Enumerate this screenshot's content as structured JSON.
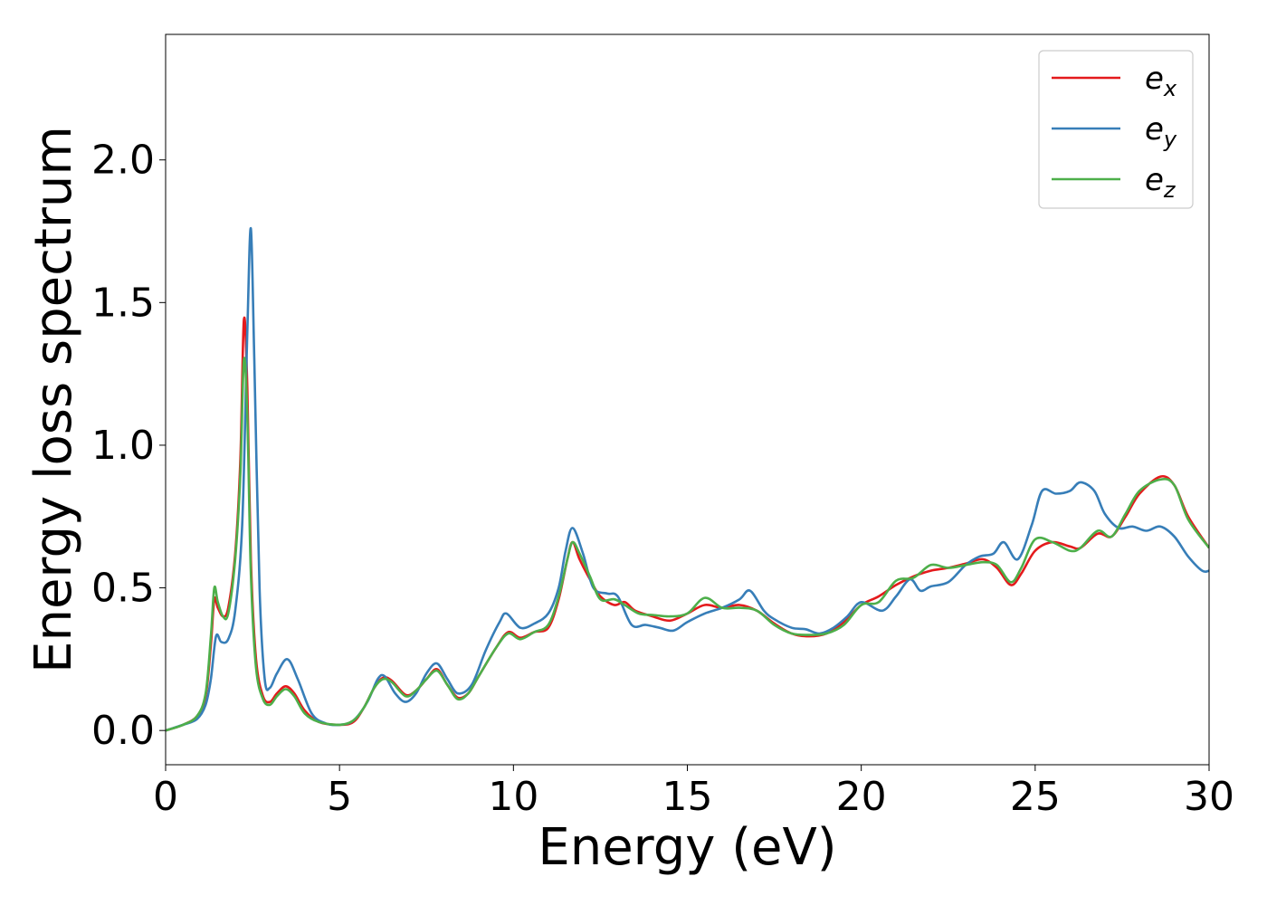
{
  "chart_data": {
    "type": "line",
    "xlabel": "Energy (eV)",
    "ylabel": "Energy loss spectrum",
    "xlim": [
      0,
      30
    ],
    "ylim": [
      -0.12,
      2.44
    ],
    "xticks": [
      0,
      5,
      10,
      15,
      20,
      25,
      30
    ],
    "yticks": [
      0.0,
      0.5,
      1.0,
      1.5,
      2.0
    ],
    "xtick_labels": [
      "0",
      "5",
      "10",
      "15",
      "20",
      "25",
      "30"
    ],
    "ytick_labels": [
      "0.0",
      "0.5",
      "1.0",
      "1.5",
      "2.0"
    ],
    "grid": false,
    "legend_position": "top-right",
    "series": [
      {
        "name": "e",
        "subscript": "x",
        "color": "#e41a1c",
        "points": [
          [
            0,
            0
          ],
          [
            0.5,
            0.02
          ],
          [
            0.9,
            0.05
          ],
          [
            1.15,
            0.12
          ],
          [
            1.3,
            0.3
          ],
          [
            1.4,
            0.46
          ],
          [
            1.5,
            0.43
          ],
          [
            1.65,
            0.4
          ],
          [
            1.8,
            0.43
          ],
          [
            2.0,
            0.62
          ],
          [
            2.15,
            0.95
          ],
          [
            2.25,
            1.44
          ],
          [
            2.35,
            1.2
          ],
          [
            2.45,
            0.6
          ],
          [
            2.6,
            0.25
          ],
          [
            2.8,
            0.12
          ],
          [
            3.0,
            0.1
          ],
          [
            3.2,
            0.13
          ],
          [
            3.45,
            0.155
          ],
          [
            3.7,
            0.13
          ],
          [
            4.0,
            0.07
          ],
          [
            4.4,
            0.03
          ],
          [
            5.0,
            0.02
          ],
          [
            5.4,
            0.03
          ],
          [
            5.7,
            0.08
          ],
          [
            6.0,
            0.15
          ],
          [
            6.25,
            0.185
          ],
          [
            6.5,
            0.175
          ],
          [
            6.9,
            0.125
          ],
          [
            7.2,
            0.14
          ],
          [
            7.5,
            0.18
          ],
          [
            7.8,
            0.215
          ],
          [
            8.1,
            0.16
          ],
          [
            8.4,
            0.115
          ],
          [
            8.7,
            0.13
          ],
          [
            9.0,
            0.19
          ],
          [
            9.5,
            0.29
          ],
          [
            9.85,
            0.345
          ],
          [
            10.2,
            0.325
          ],
          [
            10.6,
            0.345
          ],
          [
            11.0,
            0.36
          ],
          [
            11.3,
            0.46
          ],
          [
            11.55,
            0.6
          ],
          [
            11.7,
            0.66
          ],
          [
            11.9,
            0.6
          ],
          [
            12.2,
            0.53
          ],
          [
            12.5,
            0.47
          ],
          [
            12.9,
            0.44
          ],
          [
            13.2,
            0.45
          ],
          [
            13.5,
            0.42
          ],
          [
            14.0,
            0.4
          ],
          [
            14.5,
            0.385
          ],
          [
            15.0,
            0.41
          ],
          [
            15.5,
            0.44
          ],
          [
            16.0,
            0.43
          ],
          [
            16.5,
            0.44
          ],
          [
            17.0,
            0.42
          ],
          [
            17.5,
            0.375
          ],
          [
            18.0,
            0.34
          ],
          [
            18.5,
            0.33
          ],
          [
            19.0,
            0.34
          ],
          [
            19.5,
            0.38
          ],
          [
            20.0,
            0.44
          ],
          [
            20.5,
            0.47
          ],
          [
            21.0,
            0.51
          ],
          [
            21.5,
            0.54
          ],
          [
            22.0,
            0.56
          ],
          [
            22.5,
            0.57
          ],
          [
            23.0,
            0.585
          ],
          [
            23.5,
            0.6
          ],
          [
            23.9,
            0.57
          ],
          [
            24.3,
            0.51
          ],
          [
            24.6,
            0.55
          ],
          [
            25.0,
            0.63
          ],
          [
            25.5,
            0.66
          ],
          [
            26.0,
            0.645
          ],
          [
            26.3,
            0.64
          ],
          [
            26.8,
            0.69
          ],
          [
            27.2,
            0.68
          ],
          [
            27.6,
            0.75
          ],
          [
            28.0,
            0.83
          ],
          [
            28.6,
            0.89
          ],
          [
            29.0,
            0.86
          ],
          [
            29.4,
            0.75
          ],
          [
            30.0,
            0.64
          ]
        ]
      },
      {
        "name": "e",
        "subscript": "y",
        "color": "#377eb8",
        "points": [
          [
            0,
            0
          ],
          [
            0.5,
            0.02
          ],
          [
            0.9,
            0.04
          ],
          [
            1.15,
            0.09
          ],
          [
            1.3,
            0.18
          ],
          [
            1.45,
            0.33
          ],
          [
            1.6,
            0.31
          ],
          [
            1.8,
            0.32
          ],
          [
            2.0,
            0.42
          ],
          [
            2.2,
            0.72
          ],
          [
            2.35,
            1.4
          ],
          [
            2.45,
            1.76
          ],
          [
            2.55,
            1.3
          ],
          [
            2.7,
            0.5
          ],
          [
            2.85,
            0.18
          ],
          [
            3.0,
            0.15
          ],
          [
            3.2,
            0.2
          ],
          [
            3.5,
            0.25
          ],
          [
            3.8,
            0.18
          ],
          [
            4.2,
            0.06
          ],
          [
            4.6,
            0.025
          ],
          [
            5.0,
            0.02
          ],
          [
            5.4,
            0.035
          ],
          [
            5.8,
            0.1
          ],
          [
            6.1,
            0.18
          ],
          [
            6.3,
            0.19
          ],
          [
            6.6,
            0.13
          ],
          [
            6.9,
            0.1
          ],
          [
            7.2,
            0.13
          ],
          [
            7.5,
            0.2
          ],
          [
            7.8,
            0.235
          ],
          [
            8.1,
            0.18
          ],
          [
            8.4,
            0.13
          ],
          [
            8.8,
            0.16
          ],
          [
            9.2,
            0.28
          ],
          [
            9.6,
            0.38
          ],
          [
            9.8,
            0.41
          ],
          [
            10.2,
            0.36
          ],
          [
            10.6,
            0.375
          ],
          [
            11.0,
            0.41
          ],
          [
            11.3,
            0.5
          ],
          [
            11.5,
            0.63
          ],
          [
            11.7,
            0.71
          ],
          [
            12.0,
            0.62
          ],
          [
            12.3,
            0.5
          ],
          [
            12.7,
            0.48
          ],
          [
            13.0,
            0.47
          ],
          [
            13.4,
            0.37
          ],
          [
            13.8,
            0.37
          ],
          [
            14.2,
            0.36
          ],
          [
            14.6,
            0.35
          ],
          [
            15.0,
            0.38
          ],
          [
            15.5,
            0.41
          ],
          [
            16.0,
            0.43
          ],
          [
            16.5,
            0.46
          ],
          [
            16.8,
            0.49
          ],
          [
            17.2,
            0.42
          ],
          [
            17.5,
            0.39
          ],
          [
            18.0,
            0.36
          ],
          [
            18.4,
            0.355
          ],
          [
            18.8,
            0.34
          ],
          [
            19.2,
            0.36
          ],
          [
            19.6,
            0.4
          ],
          [
            20.0,
            0.45
          ],
          [
            20.6,
            0.42
          ],
          [
            21.0,
            0.47
          ],
          [
            21.4,
            0.53
          ],
          [
            21.7,
            0.49
          ],
          [
            22.0,
            0.505
          ],
          [
            22.5,
            0.52
          ],
          [
            23.0,
            0.58
          ],
          [
            23.4,
            0.61
          ],
          [
            23.8,
            0.62
          ],
          [
            24.1,
            0.66
          ],
          [
            24.5,
            0.6
          ],
          [
            24.9,
            0.72
          ],
          [
            25.2,
            0.84
          ],
          [
            25.6,
            0.83
          ],
          [
            26.0,
            0.84
          ],
          [
            26.3,
            0.87
          ],
          [
            26.7,
            0.84
          ],
          [
            27.0,
            0.76
          ],
          [
            27.4,
            0.71
          ],
          [
            27.8,
            0.715
          ],
          [
            28.2,
            0.7
          ],
          [
            28.6,
            0.715
          ],
          [
            29.0,
            0.68
          ],
          [
            29.4,
            0.61
          ],
          [
            29.8,
            0.56
          ],
          [
            30.0,
            0.56
          ]
        ]
      },
      {
        "name": "e",
        "subscript": "z",
        "color": "#4daf4a",
        "points": [
          [
            0,
            0
          ],
          [
            0.5,
            0.02
          ],
          [
            0.9,
            0.05
          ],
          [
            1.15,
            0.13
          ],
          [
            1.3,
            0.33
          ],
          [
            1.4,
            0.5
          ],
          [
            1.5,
            0.45
          ],
          [
            1.65,
            0.4
          ],
          [
            1.8,
            0.41
          ],
          [
            2.0,
            0.6
          ],
          [
            2.15,
            0.9
          ],
          [
            2.25,
            1.3
          ],
          [
            2.35,
            1.1
          ],
          [
            2.45,
            0.55
          ],
          [
            2.6,
            0.22
          ],
          [
            2.8,
            0.11
          ],
          [
            3.0,
            0.09
          ],
          [
            3.2,
            0.12
          ],
          [
            3.45,
            0.145
          ],
          [
            3.7,
            0.12
          ],
          [
            4.0,
            0.06
          ],
          [
            4.4,
            0.03
          ],
          [
            5.0,
            0.02
          ],
          [
            5.4,
            0.035
          ],
          [
            5.7,
            0.08
          ],
          [
            6.0,
            0.15
          ],
          [
            6.25,
            0.18
          ],
          [
            6.5,
            0.17
          ],
          [
            6.9,
            0.12
          ],
          [
            7.2,
            0.14
          ],
          [
            7.5,
            0.18
          ],
          [
            7.8,
            0.21
          ],
          [
            8.1,
            0.16
          ],
          [
            8.4,
            0.11
          ],
          [
            8.7,
            0.13
          ],
          [
            9.0,
            0.19
          ],
          [
            9.5,
            0.29
          ],
          [
            9.85,
            0.34
          ],
          [
            10.2,
            0.32
          ],
          [
            10.6,
            0.345
          ],
          [
            11.0,
            0.37
          ],
          [
            11.3,
            0.47
          ],
          [
            11.55,
            0.6
          ],
          [
            11.7,
            0.66
          ],
          [
            11.9,
            0.62
          ],
          [
            12.2,
            0.54
          ],
          [
            12.5,
            0.46
          ],
          [
            12.9,
            0.46
          ],
          [
            13.2,
            0.44
          ],
          [
            13.6,
            0.41
          ],
          [
            14.0,
            0.405
          ],
          [
            14.5,
            0.4
          ],
          [
            15.0,
            0.41
          ],
          [
            15.5,
            0.465
          ],
          [
            16.0,
            0.43
          ],
          [
            16.5,
            0.43
          ],
          [
            17.0,
            0.42
          ],
          [
            17.5,
            0.37
          ],
          [
            18.0,
            0.34
          ],
          [
            18.5,
            0.335
          ],
          [
            19.0,
            0.34
          ],
          [
            19.5,
            0.37
          ],
          [
            20.0,
            0.44
          ],
          [
            20.5,
            0.45
          ],
          [
            21.0,
            0.525
          ],
          [
            21.5,
            0.535
          ],
          [
            22.0,
            0.58
          ],
          [
            22.5,
            0.57
          ],
          [
            23.0,
            0.58
          ],
          [
            23.5,
            0.59
          ],
          [
            23.9,
            0.58
          ],
          [
            24.3,
            0.52
          ],
          [
            24.6,
            0.57
          ],
          [
            25.0,
            0.67
          ],
          [
            25.5,
            0.66
          ],
          [
            26.0,
            0.63
          ],
          [
            26.3,
            0.64
          ],
          [
            26.8,
            0.7
          ],
          [
            27.2,
            0.68
          ],
          [
            27.6,
            0.76
          ],
          [
            28.0,
            0.84
          ],
          [
            28.6,
            0.88
          ],
          [
            29.0,
            0.86
          ],
          [
            29.4,
            0.74
          ],
          [
            30.0,
            0.64
          ]
        ]
      }
    ]
  }
}
